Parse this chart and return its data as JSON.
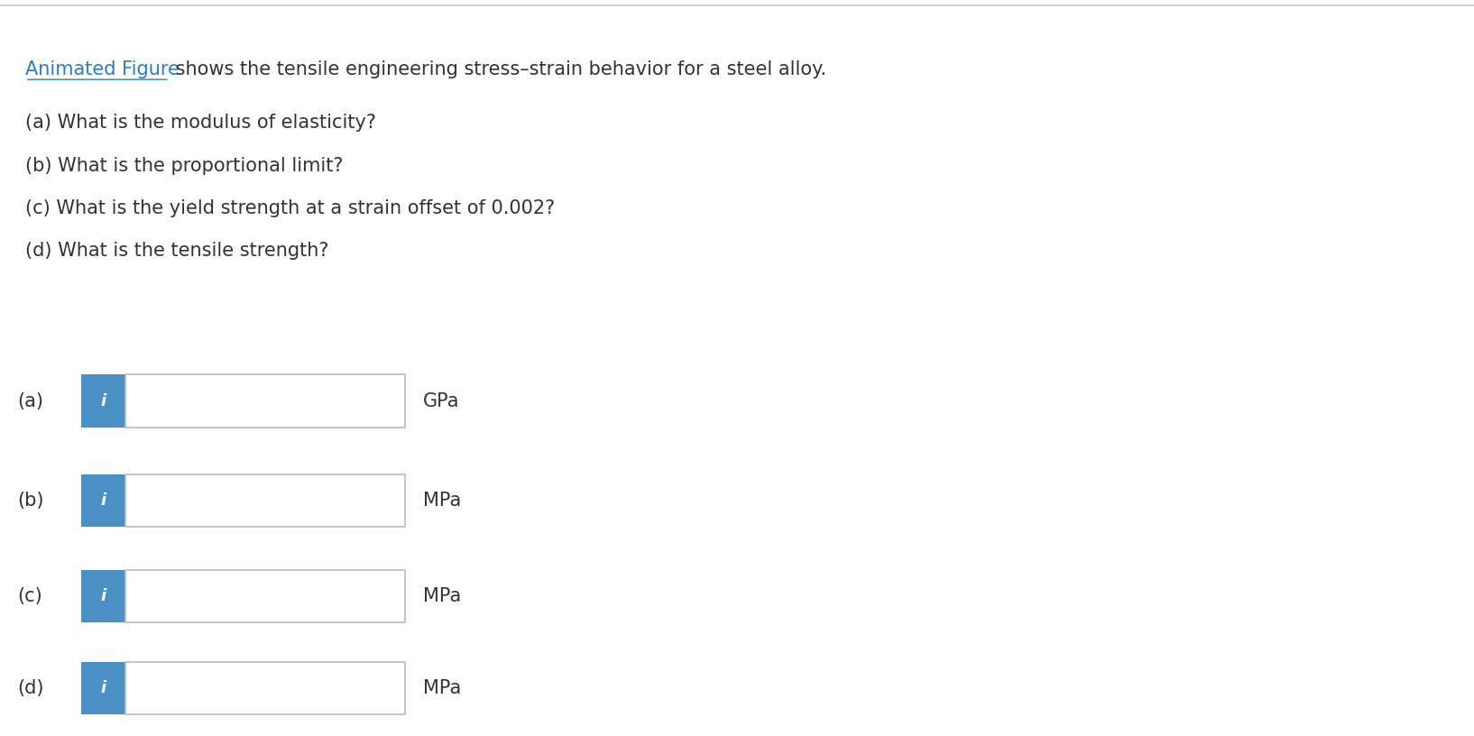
{
  "background_color": "#ffffff",
  "top_line_color": "#c8c8c8",
  "link_text": "Animated Figure",
  "link_color": "#2E7BBF",
  "header_text": " shows the tensile engineering stress–strain behavior for a steel alloy.",
  "header_fontsize": 15,
  "questions": [
    "(a) What is the modulus of elasticity?",
    "(b) What is the proportional limit?",
    "(c) What is the yield strength at a strain offset of 0.002?",
    "(d) What is the tensile strength?"
  ],
  "question_fontsize": 15,
  "rows": [
    {
      "label": "(a)",
      "unit": "GPa"
    },
    {
      "label": "(b)",
      "unit": "MPa"
    },
    {
      "label": "(c)",
      "unit": "MPa"
    },
    {
      "label": "(d)",
      "unit": "MPa"
    }
  ],
  "label_fontsize": 15,
  "unit_fontsize": 15,
  "button_color": "#4A90C4",
  "button_text": "i",
  "button_text_color": "#ffffff",
  "button_text_fontsize": 13,
  "input_box_color": "#ffffff",
  "input_box_border_color": "#bbbbbb",
  "row_label_color": "#333333",
  "unit_color": "#333333",
  "text_color": "#333333"
}
